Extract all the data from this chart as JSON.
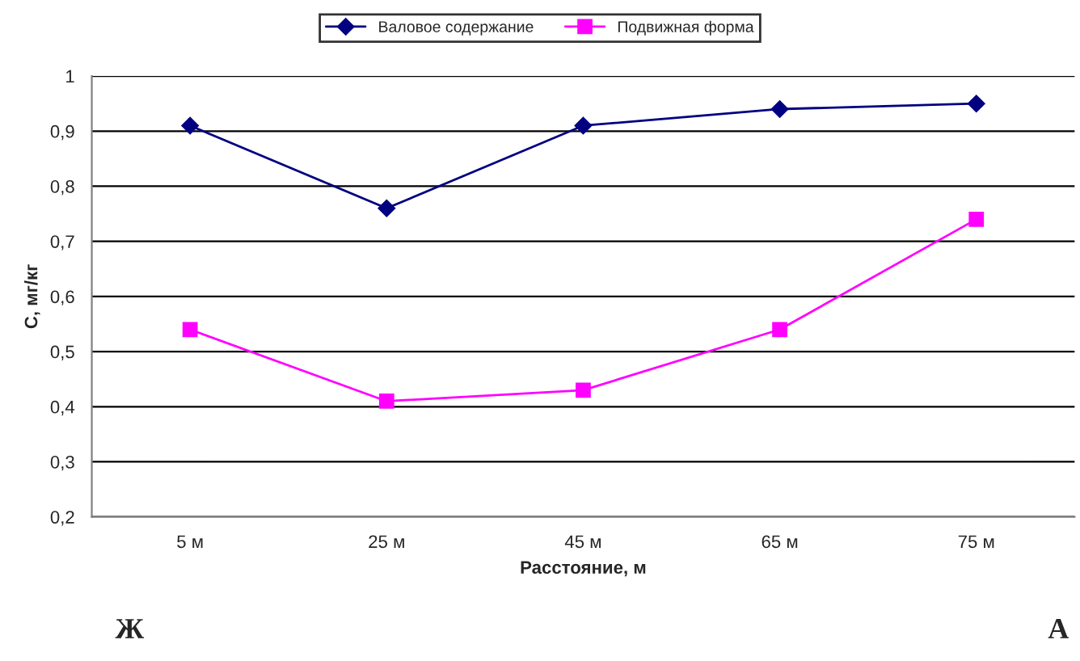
{
  "chart_data": {
    "type": "line",
    "xlabel": "Расстояние, м",
    "ylabel": "С, мг/кг",
    "categories": [
      "5 м",
      "25 м",
      "45 м",
      "65 м",
      "75 м"
    ],
    "series": [
      {
        "name": "Валовое содержание",
        "color": "#000080",
        "marker": "diamond",
        "values": [
          0.91,
          0.76,
          0.91,
          0.94,
          0.95
        ]
      },
      {
        "name": "Подвижная форма",
        "color": "#ff00ff",
        "marker": "square",
        "values": [
          0.54,
          0.41,
          0.43,
          0.54,
          0.74
        ]
      }
    ],
    "ylim": [
      0.2,
      1.0
    ],
    "yticks": [
      {
        "value": 0.2,
        "label": "0,2"
      },
      {
        "value": 0.3,
        "label": "0,3"
      },
      {
        "value": 0.4,
        "label": "0,4"
      },
      {
        "value": 0.5,
        "label": "0,5"
      },
      {
        "value": 0.6,
        "label": "0,6"
      },
      {
        "value": 0.7,
        "label": "0,7"
      },
      {
        "value": 0.8,
        "label": "0,8"
      },
      {
        "value": 0.9,
        "label": "0,9"
      },
      {
        "value": 1.0,
        "label": "1"
      }
    ],
    "grid": "y",
    "legend": "top",
    "line_style": "solid",
    "annotations": [
      "Ж",
      "А"
    ]
  }
}
